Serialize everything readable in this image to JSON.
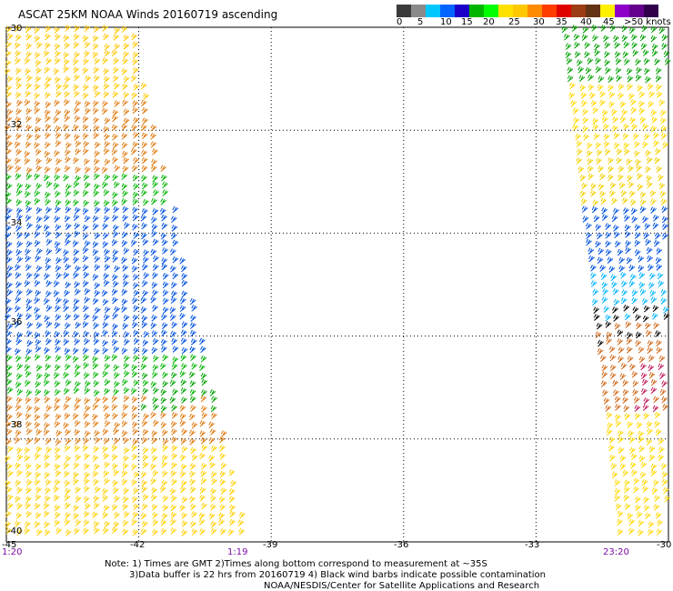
{
  "title": "ASCAT 25KM NOAA Winds 20160719 ascending",
  "colorbar": {
    "colors": [
      "#3b3b3b",
      "#8a8a8a",
      "#00c8ff",
      "#0064ff",
      "#1a00c8",
      "#00b400",
      "#00ff00",
      "#ffe100",
      "#ffc800",
      "#ff8c00",
      "#ff3c00",
      "#e10000",
      "#9b3c14",
      "#643214",
      "#fff000",
      "#8c00c8",
      "#64008c",
      "#32004b"
    ],
    "labels": [
      "0",
      "5",
      "10",
      "15",
      "20",
      "25",
      "30",
      "35",
      "40",
      "45",
      ">50 knots"
    ]
  },
  "map": {
    "lat_range": [
      -40,
      -30
    ],
    "lon_range": [
      -45,
      -30
    ],
    "lat_labels": [
      "-30",
      "-32",
      "-34",
      "-36",
      "-38",
      "-40"
    ],
    "lon_labels": [
      "-45",
      "-42",
      "-39",
      "-36",
      "-33",
      "-30"
    ],
    "time_labels": [
      "1:20",
      "1:19",
      "23:20"
    ],
    "gridlines": true
  },
  "notes": [
    "Note: 1) Times are GMT 2)Times along bottom correspond to measurement at ~35S",
    "3)Data buffer is 22 hrs from 20160719 4) Black wind barbs indicate possible contamination",
    "NOAA/NESDIS/Center for Satellite Applications and Research"
  ]
}
